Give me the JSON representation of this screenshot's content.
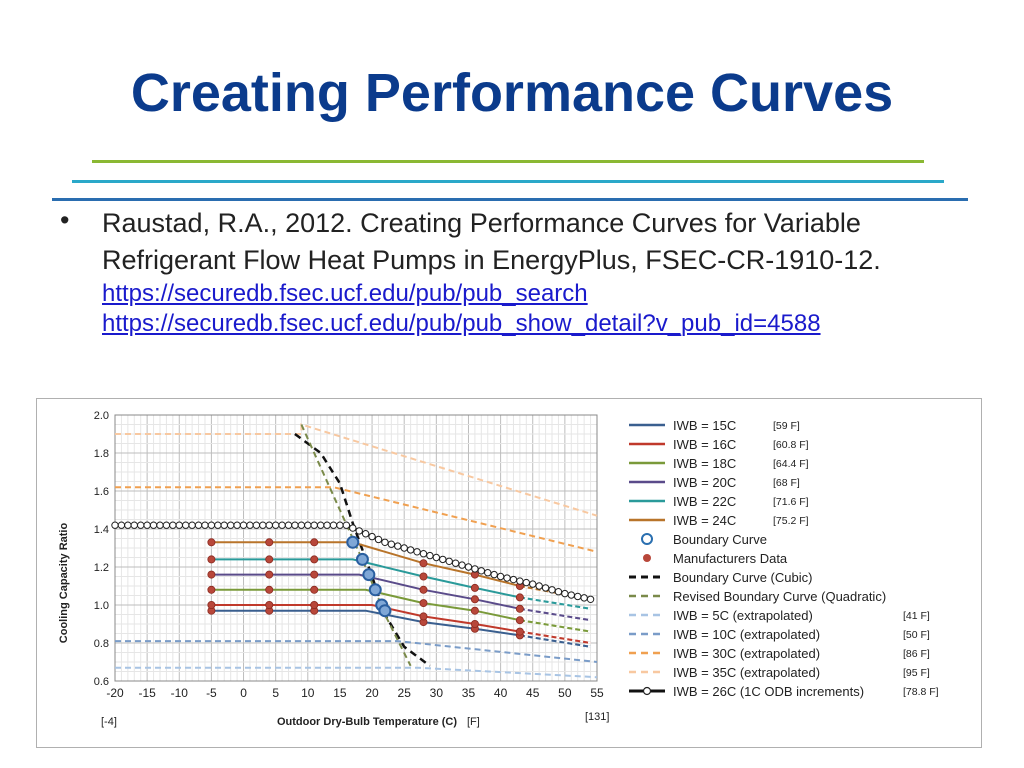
{
  "slide": {
    "title": "Creating Performance Curves",
    "bullet": "•",
    "citation": "Raustad, R.A., 2012. Creating Performance Curves for Variable Refrigerant Flow Heat Pumps in EnergyPlus, FSEC-CR-1910-12.",
    "links": [
      "https://securedb.fsec.ucf.edu/pub/pub_search",
      "https://securedb.fsec.ucf.edu/pub/pub_show_detail?v_pub_id=4588"
    ],
    "rule_colors": [
      "#8ab833",
      "#2aa8c9",
      "#2a6db0"
    ],
    "title_color": "#0b3b8c"
  },
  "chart_data": {
    "type": "line",
    "title": "",
    "xlabel": "Outdoor Dry-Bulb Temperature (C)",
    "ylabel": "Cooling Capacity Ratio",
    "xlim": [
      -20,
      55
    ],
    "ylim": [
      0.6,
      2.0
    ],
    "x_ticks": [
      "-20",
      "-15",
      "-10",
      "-5",
      "0",
      "5",
      "10",
      "15",
      "20",
      "25",
      "30",
      "35",
      "40",
      "45",
      "50",
      "55"
    ],
    "y_ticks": [
      "0.6",
      "0.8",
      "1.0",
      "1.2",
      "1.4",
      "1.6",
      "1.8",
      "2.0"
    ],
    "grid": true,
    "legend_position": "right",
    "annotations": {
      "x_left": "[-4]",
      "x_unit": "[F]",
      "x_right": "[131]"
    },
    "series": [
      {
        "name": "IWB = 15C",
        "f_label": "[59 F]",
        "color": "#3a5f8f",
        "style": "solid",
        "points": [
          [
            -5,
            0.97
          ],
          [
            19,
            0.97
          ],
          [
            28,
            0.91
          ],
          [
            36,
            0.875
          ],
          [
            43,
            0.84
          ],
          [
            54,
            0.78
          ]
        ],
        "markers": [
          [
            -5,
            0.97
          ],
          [
            4,
            0.97
          ],
          [
            11,
            0.97
          ],
          [
            28,
            0.91
          ],
          [
            36,
            0.875
          ],
          [
            43,
            0.84
          ]
        ]
      },
      {
        "name": "IWB = 16C",
        "f_label": "[60.8 F]",
        "color": "#c0392b",
        "style": "solid",
        "points": [
          [
            -5,
            1.0
          ],
          [
            20,
            1.0
          ],
          [
            28,
            0.94
          ],
          [
            36,
            0.9
          ],
          [
            43,
            0.86
          ],
          [
            54,
            0.8
          ]
        ],
        "markers": [
          [
            -5,
            1.0
          ],
          [
            4,
            1.0
          ],
          [
            11,
            1.0
          ],
          [
            28,
            0.94
          ],
          [
            36,
            0.9
          ],
          [
            43,
            0.86
          ]
        ]
      },
      {
        "name": "IWB = 18C",
        "f_label": "[64.4 F]",
        "color": "#7a9a3a",
        "style": "solid",
        "points": [
          [
            -5,
            1.08
          ],
          [
            19,
            1.08
          ],
          [
            28,
            1.01
          ],
          [
            36,
            0.97
          ],
          [
            43,
            0.92
          ],
          [
            54,
            0.86
          ]
        ],
        "markers": [
          [
            -5,
            1.08
          ],
          [
            4,
            1.08
          ],
          [
            11,
            1.08
          ],
          [
            28,
            1.01
          ],
          [
            36,
            0.97
          ],
          [
            43,
            0.92
          ]
        ]
      },
      {
        "name": "IWB = 20C",
        "f_label": "[68 F]",
        "color": "#5a4b8a",
        "style": "solid",
        "points": [
          [
            -5,
            1.16
          ],
          [
            18,
            1.16
          ],
          [
            28,
            1.08
          ],
          [
            36,
            1.03
          ],
          [
            43,
            0.98
          ],
          [
            54,
            0.92
          ]
        ],
        "markers": [
          [
            -5,
            1.16
          ],
          [
            4,
            1.16
          ],
          [
            11,
            1.16
          ],
          [
            28,
            1.08
          ],
          [
            36,
            1.03
          ],
          [
            43,
            0.98
          ]
        ]
      },
      {
        "name": "IWB = 22C",
        "f_label": "[71.6 F]",
        "color": "#2a9a9a",
        "style": "solid",
        "points": [
          [
            -5,
            1.24
          ],
          [
            17,
            1.24
          ],
          [
            28,
            1.15
          ],
          [
            36,
            1.09
          ],
          [
            43,
            1.04
          ],
          [
            54,
            0.98
          ]
        ],
        "markers": [
          [
            -5,
            1.24
          ],
          [
            4,
            1.24
          ],
          [
            11,
            1.24
          ],
          [
            28,
            1.15
          ],
          [
            36,
            1.09
          ],
          [
            43,
            1.04
          ]
        ]
      },
      {
        "name": "IWB = 24C",
        "f_label": "[75.2 F]",
        "color": "#b8742a",
        "style": "solid",
        "points": [
          [
            -5,
            1.33
          ],
          [
            17,
            1.33
          ],
          [
            28,
            1.22
          ],
          [
            36,
            1.16
          ],
          [
            43,
            1.1
          ],
          [
            54,
            1.03
          ]
        ],
        "markers": [
          [
            -5,
            1.33
          ],
          [
            4,
            1.33
          ],
          [
            11,
            1.33
          ],
          [
            28,
            1.22
          ],
          [
            36,
            1.16
          ],
          [
            43,
            1.1
          ]
        ]
      },
      {
        "name": "Boundary Curve",
        "f_label": "",
        "color": "#3a6fb0",
        "style": "marker-ring",
        "points": [],
        "markers": [
          [
            17,
            1.33
          ],
          [
            18.5,
            1.24
          ],
          [
            19.5,
            1.16
          ],
          [
            20.5,
            1.08
          ],
          [
            21.5,
            1.0
          ],
          [
            22,
            0.97
          ]
        ]
      },
      {
        "name": "Manufacturers Data",
        "f_label": "",
        "color": "#c0392b",
        "style": "marker-dot",
        "points": [],
        "markers": []
      },
      {
        "name": "Boundary Curve (Cubic)",
        "f_label": "",
        "color": "#111111",
        "style": "dash",
        "points": [
          [
            8,
            1.9
          ],
          [
            12,
            1.8
          ],
          [
            15,
            1.64
          ],
          [
            17,
            1.43
          ],
          [
            20,
            1.15
          ],
          [
            22,
            0.95
          ],
          [
            25,
            0.78
          ],
          [
            29,
            0.68
          ]
        ],
        "markers": []
      },
      {
        "name": "Revised Boundary Curve (Quadratic)",
        "f_label": "",
        "color": "#7a8a4a",
        "style": "dash",
        "points": [
          [
            9,
            1.95
          ],
          [
            11,
            1.8
          ],
          [
            15,
            1.5
          ],
          [
            19,
            1.2
          ],
          [
            22,
            0.95
          ],
          [
            26,
            0.68
          ]
        ],
        "markers": []
      },
      {
        "name": "IWB = 5C   (extrapolated)",
        "f_label": "[41 F]",
        "color": "#a8c4e4",
        "style": "dash",
        "points": [
          [
            -20,
            0.67
          ],
          [
            27,
            0.67
          ],
          [
            55,
            0.62
          ]
        ],
        "markers": []
      },
      {
        "name": "IWB = 10C  (extrapolated)",
        "f_label": "[50 F]",
        "color": "#7a9cc8",
        "style": "dash",
        "points": [
          [
            -20,
            0.81
          ],
          [
            24,
            0.81
          ],
          [
            55,
            0.7
          ]
        ],
        "markers": []
      },
      {
        "name": "IWB = 30C  (extrapolated)",
        "f_label": "[86 F]",
        "color": "#f0a050",
        "style": "dash",
        "points": [
          [
            -20,
            1.62
          ],
          [
            14,
            1.62
          ],
          [
            55,
            1.28
          ]
        ],
        "markers": []
      },
      {
        "name": "IWB = 35C  (extrapolated)",
        "f_label": "[95 F]",
        "color": "#f8c8a0",
        "style": "dash",
        "points": [
          [
            -20,
            1.9
          ],
          [
            9,
            1.9
          ],
          [
            9,
            1.95
          ],
          [
            55,
            1.47
          ]
        ],
        "markers": []
      },
      {
        "name": "IWB = 26C (1C ODB increments)",
        "f_label": "[78.8 F]",
        "color": "#111111",
        "style": "solid-ring",
        "points": [
          [
            -20,
            1.42
          ],
          [
            16,
            1.42
          ],
          [
            18,
            1.39
          ],
          [
            20,
            1.36
          ],
          [
            22,
            1.33
          ],
          [
            25,
            1.3
          ],
          [
            30,
            1.25
          ],
          [
            35,
            1.2
          ],
          [
            40,
            1.15
          ],
          [
            45,
            1.11
          ],
          [
            50,
            1.06
          ],
          [
            54,
            1.03
          ]
        ],
        "markers": []
      }
    ]
  }
}
